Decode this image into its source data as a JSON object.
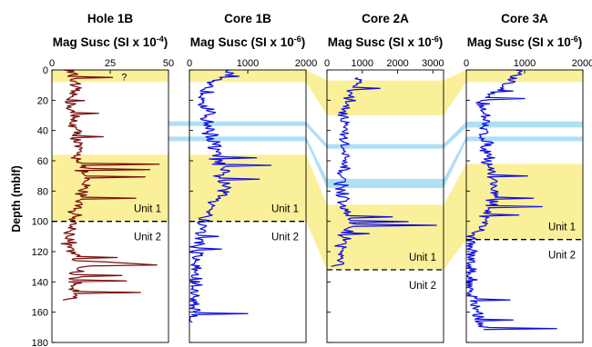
{
  "chart_data": {
    "type": "line",
    "ylabel": "Depth (mblf)",
    "ylim": [
      180,
      0
    ],
    "yticks": [
      0,
      20,
      40,
      60,
      80,
      100,
      120,
      140,
      160,
      180
    ],
    "colors": {
      "highlight": "#fbf09a",
      "band": "#aee0f4",
      "hole_line": "#7a1010",
      "core_line": "#1010e0"
    },
    "panels": [
      {
        "title_line1": "Hole 1B",
        "title_line2_prefix": "Mag Susc (SI x 10",
        "exponent": "-4",
        "title_line2_suffix": ")",
        "xlim": [
          0,
          50
        ],
        "xticks": [
          0,
          25,
          50
        ],
        "series_color": "#7a1010",
        "yellow_bands": [
          [
            0,
            8
          ],
          [
            56,
            100
          ]
        ],
        "blue_bands": [],
        "unit_boundary_depth": 100,
        "unit_labels": [
          "Unit 1",
          "Unit 2"
        ],
        "annotation": "?",
        "depth_step": 0.7,
        "profile_knots": [
          [
            0,
            8
          ],
          [
            10,
            9
          ],
          [
            25,
            8
          ],
          [
            40,
            10
          ],
          [
            55,
            11
          ],
          [
            65,
            13
          ],
          [
            80,
            14
          ],
          [
            100,
            9
          ],
          [
            115,
            7
          ],
          [
            126,
            10
          ],
          [
            128,
            38
          ],
          [
            130,
            12
          ],
          [
            140,
            9
          ],
          [
            150,
            12
          ],
          [
            152,
            3
          ]
        ],
        "spikes": [
          [
            5,
            26
          ],
          [
            20,
            14
          ],
          [
            29,
            20
          ],
          [
            44,
            22
          ],
          [
            62,
            46
          ],
          [
            66,
            42
          ],
          [
            71,
            40
          ],
          [
            85,
            36
          ],
          [
            124,
            28
          ],
          [
            129,
            45
          ],
          [
            136,
            30
          ],
          [
            139,
            32
          ],
          [
            147,
            38
          ]
        ],
        "noise": 4
      },
      {
        "title_line1": "Core 1B",
        "title_line2_prefix": "Mag Susc (SI x 10",
        "exponent": "-6",
        "title_line2_suffix": ")",
        "xlim": [
          0,
          2000
        ],
        "xticks": [
          0,
          1000,
          2000
        ],
        "series_color": "#1010e0",
        "yellow_bands": [
          [
            0,
            8
          ],
          [
            56,
            100
          ]
        ],
        "blue_bands": [
          [
            34,
            37
          ],
          [
            44,
            47
          ]
        ],
        "unit_boundary_depth": 100,
        "unit_labels": [
          "Unit 1",
          "Unit 2"
        ],
        "annotation": "",
        "depth_step": 0.7,
        "profile_knots": [
          [
            0,
            700
          ],
          [
            3,
            600
          ],
          [
            8,
            300
          ],
          [
            20,
            280
          ],
          [
            40,
            350
          ],
          [
            60,
            500
          ],
          [
            80,
            600
          ],
          [
            100,
            250
          ],
          [
            120,
            120
          ],
          [
            140,
            90
          ],
          [
            160,
            80
          ],
          [
            167,
            60
          ]
        ],
        "spikes": [
          [
            4,
            850
          ],
          [
            58,
            1150
          ],
          [
            63,
            1400
          ],
          [
            72,
            1200
          ],
          [
            110,
            500
          ],
          [
            118,
            550
          ],
          [
            161,
            1000
          ]
        ],
        "noise": 180
      },
      {
        "title_line1": "Core 2A",
        "title_line2_prefix": "Mag Susc (SI x 10",
        "exponent": "-6",
        "title_line2_suffix": ")",
        "xlim": [
          0,
          3300
        ],
        "xticks": [
          0,
          1000,
          2000,
          3000
        ],
        "series_color": "#1010e0",
        "yellow_bands": [
          [
            7,
            30
          ],
          [
            89,
            132
          ]
        ],
        "blue_bands": [
          [
            49,
            52
          ],
          [
            72,
            78
          ]
        ],
        "unit_boundary_depth": 132,
        "unit_labels": [
          "Unit 1",
          "Unit 2"
        ],
        "annotation": "",
        "depth_step": 0.8,
        "profile_knots": [
          [
            5,
            900
          ],
          [
            15,
            700
          ],
          [
            30,
            500
          ],
          [
            60,
            450
          ],
          [
            90,
            400
          ],
          [
            100,
            700
          ],
          [
            110,
            500
          ],
          [
            130,
            300
          ]
        ],
        "spikes": [
          [
            12,
            1500
          ],
          [
            97,
            1850
          ],
          [
            100,
            2300
          ],
          [
            102,
            3100
          ],
          [
            108,
            1200
          ]
        ],
        "noise": 240
      },
      {
        "title_line1": "Core 3A",
        "title_line2_prefix": "Mag Susc (SI x 10",
        "exponent": "-6",
        "title_line2_suffix": ")",
        "xlim": [
          0,
          2000
        ],
        "xticks": [
          0,
          1000,
          2000
        ],
        "series_color": "#1010e0",
        "yellow_bands": [
          [
            0,
            8
          ],
          [
            62,
            112
          ]
        ],
        "blue_bands": [
          [
            34,
            38
          ],
          [
            44,
            47
          ]
        ],
        "unit_boundary_depth": 112,
        "unit_labels": [
          "Unit 1",
          "Unit 2"
        ],
        "annotation": "",
        "depth_step": 0.7,
        "profile_knots": [
          [
            0,
            900
          ],
          [
            8,
            700
          ],
          [
            20,
            300
          ],
          [
            40,
            300
          ],
          [
            62,
            400
          ],
          [
            80,
            500
          ],
          [
            100,
            300
          ],
          [
            112,
            80
          ],
          [
            140,
            60
          ],
          [
            160,
            150
          ],
          [
            172,
            300
          ]
        ],
        "spikes": [
          [
            3,
            950
          ],
          [
            14,
            800
          ],
          [
            19,
            1000
          ],
          [
            70,
            1050
          ],
          [
            85,
            1150
          ],
          [
            90,
            1300
          ],
          [
            96,
            900
          ],
          [
            152,
            750
          ],
          [
            165,
            800
          ],
          [
            171,
            1550
          ],
          [
            174,
            1850
          ]
        ],
        "noise": 150
      }
    ],
    "correlation_bands": [
      {
        "type": "yellow",
        "panels": [
          2,
          3
        ],
        "left": [
          0,
          8
        ],
        "right": [
          7,
          30
        ]
      },
      {
        "type": "yellow",
        "panels": [
          2,
          3
        ],
        "left": [
          56,
          100
        ],
        "right": [
          89,
          132
        ]
      },
      {
        "type": "yellow",
        "panels": [
          3,
          4
        ],
        "left": [
          7,
          30
        ],
        "right": [
          0,
          8
        ]
      },
      {
        "type": "yellow",
        "panels": [
          3,
          4
        ],
        "left": [
          89,
          132
        ],
        "right": [
          62,
          112
        ]
      },
      {
        "type": "blue",
        "panels": [
          2,
          3
        ],
        "left": [
          34,
          37
        ],
        "right": [
          49,
          52
        ]
      },
      {
        "type": "blue",
        "panels": [
          2,
          3
        ],
        "left": [
          44,
          47
        ],
        "right": [
          72,
          78
        ]
      },
      {
        "type": "blue",
        "panels": [
          3,
          4
        ],
        "left": [
          49,
          52
        ],
        "right": [
          34,
          38
        ]
      },
      {
        "type": "blue",
        "panels": [
          3,
          4
        ],
        "left": [
          72,
          78
        ],
        "right": [
          44,
          47
        ]
      },
      {
        "type": "blue",
        "panels": [
          1,
          2
        ],
        "left": [
          34,
          37
        ],
        "right": [
          34,
          37
        ]
      },
      {
        "type": "blue",
        "panels": [
          1,
          2
        ],
        "left": [
          44,
          47
        ],
        "right": [
          44,
          47
        ]
      }
    ]
  }
}
